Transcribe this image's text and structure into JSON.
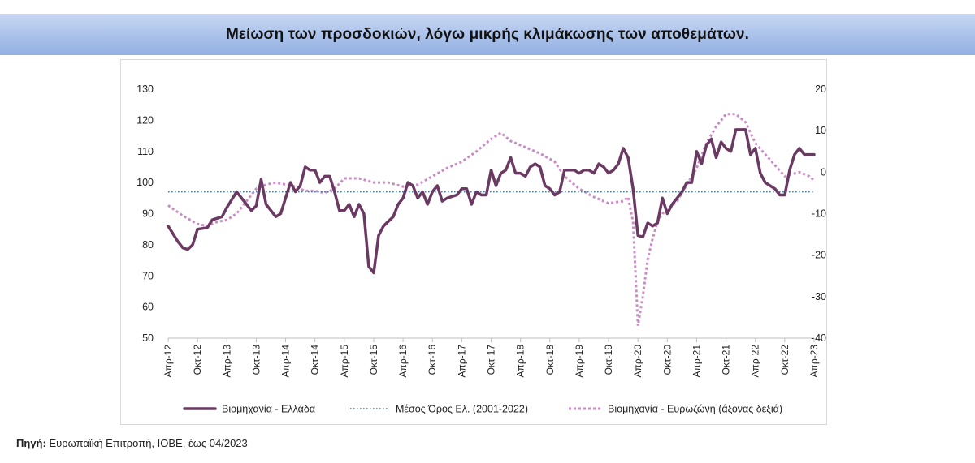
{
  "header": {
    "title": "Μείωση των προσδοκιών, λόγω μικρής κλιμάκωσης των αποθεμάτων."
  },
  "source": {
    "label": "Πηγή:",
    "text": " Ευρωπαϊκή Επιτροπή, ΙΟΒΕ, έως 04/2023"
  },
  "colors": {
    "greece": "#6b3a63",
    "average": "#2e7fb8",
    "eurozone": "#c98cc4",
    "axis": "#bfbfbf",
    "text": "#222222"
  },
  "chart_data": {
    "type": "line",
    "title": "",
    "grid": false,
    "legend_position": "bottom",
    "y_left": {
      "min": 50,
      "max": 130,
      "ticks": [
        50,
        60,
        70,
        80,
        90,
        100,
        110,
        120,
        130
      ]
    },
    "y_right": {
      "min": -40,
      "max": 20,
      "ticks": [
        -40,
        -30,
        -20,
        -10,
        0,
        10,
        20
      ]
    },
    "x_range": [
      "2012-04",
      "2023-04"
    ],
    "x_tick_labels": [
      "Απρ-12",
      "Οκτ-12",
      "Απρ-13",
      "Οκτ-13",
      "Απρ-14",
      "Οκτ-14",
      "Απρ-15",
      "Οκτ-15",
      "Απρ-16",
      "Οκτ-16",
      "Απρ-17",
      "Οκτ-17",
      "Απρ-18",
      "Οκτ-18",
      "Απρ-19",
      "Οκτ-19",
      "Απρ-20",
      "Οκτ-20",
      "Απρ-21",
      "Οκτ-21",
      "Απρ-22",
      "Οκτ-22",
      "Απρ-23"
    ],
    "series": [
      {
        "name": "Βιομηχανία  - Ελλάδα",
        "axis": "left",
        "style": "solid",
        "points": [
          [
            "2012-04",
            86
          ],
          [
            "2012-06",
            81
          ],
          [
            "2012-07",
            79
          ],
          [
            "2012-08",
            78.5
          ],
          [
            "2012-09",
            80
          ],
          [
            "2012-10",
            85
          ],
          [
            "2012-12",
            85.5
          ],
          [
            "2013-01",
            88
          ],
          [
            "2013-03",
            89
          ],
          [
            "2013-04",
            92
          ],
          [
            "2013-06",
            97
          ],
          [
            "2013-08",
            93
          ],
          [
            "2013-09",
            91
          ],
          [
            "2013-10",
            92.5
          ],
          [
            "2013-11",
            101
          ],
          [
            "2013-12",
            93
          ],
          [
            "2014-02",
            89
          ],
          [
            "2014-03",
            90
          ],
          [
            "2014-04",
            95
          ],
          [
            "2014-05",
            100
          ],
          [
            "2014-06",
            97
          ],
          [
            "2014-07",
            99
          ],
          [
            "2014-08",
            105
          ],
          [
            "2014-09",
            104
          ],
          [
            "2014-10",
            104
          ],
          [
            "2014-11",
            100
          ],
          [
            "2014-12",
            102
          ],
          [
            "2015-01",
            102
          ],
          [
            "2015-02",
            97
          ],
          [
            "2015-03",
            91
          ],
          [
            "2015-04",
            91
          ],
          [
            "2015-05",
            93
          ],
          [
            "2015-06",
            89
          ],
          [
            "2015-07",
            93
          ],
          [
            "2015-08",
            90
          ],
          [
            "2015-09",
            73
          ],
          [
            "2015-10",
            71
          ],
          [
            "2015-11",
            83
          ],
          [
            "2015-12",
            86
          ],
          [
            "2016-02",
            89
          ],
          [
            "2016-03",
            93
          ],
          [
            "2016-04",
            95
          ],
          [
            "2016-05",
            100
          ],
          [
            "2016-06",
            99
          ],
          [
            "2016-07",
            95
          ],
          [
            "2016-08",
            97
          ],
          [
            "2016-09",
            93
          ],
          [
            "2016-10",
            97
          ],
          [
            "2016-11",
            99
          ],
          [
            "2016-12",
            94
          ],
          [
            "2017-01",
            95
          ],
          [
            "2017-03",
            96
          ],
          [
            "2017-04",
            98
          ],
          [
            "2017-05",
            98
          ],
          [
            "2017-06",
            93
          ],
          [
            "2017-07",
            97
          ],
          [
            "2017-08",
            96
          ],
          [
            "2017-09",
            96
          ],
          [
            "2017-10",
            104
          ],
          [
            "2017-11",
            99
          ],
          [
            "2017-12",
            103
          ],
          [
            "2018-01",
            104
          ],
          [
            "2018-02",
            108
          ],
          [
            "2018-03",
            103
          ],
          [
            "2018-04",
            103
          ],
          [
            "2018-05",
            102
          ],
          [
            "2018-06",
            105
          ],
          [
            "2018-07",
            106
          ],
          [
            "2018-08",
            105
          ],
          [
            "2018-09",
            99
          ],
          [
            "2018-10",
            98
          ],
          [
            "2018-11",
            96
          ],
          [
            "2018-12",
            97
          ],
          [
            "2019-01",
            104
          ],
          [
            "2019-03",
            104
          ],
          [
            "2019-04",
            103
          ],
          [
            "2019-05",
            104
          ],
          [
            "2019-06",
            104
          ],
          [
            "2019-07",
            103
          ],
          [
            "2019-08",
            106
          ],
          [
            "2019-09",
            105
          ],
          [
            "2019-10",
            103
          ],
          [
            "2019-11",
            104
          ],
          [
            "2019-12",
            106
          ],
          [
            "2020-01",
            111
          ],
          [
            "2020-02",
            108
          ],
          [
            "2020-03",
            98
          ],
          [
            "2020-04",
            83
          ],
          [
            "2020-05",
            82.5
          ],
          [
            "2020-06",
            87
          ],
          [
            "2020-07",
            86
          ],
          [
            "2020-08",
            87
          ],
          [
            "2020-09",
            95
          ],
          [
            "2020-10",
            90
          ],
          [
            "2020-11",
            93
          ],
          [
            "2020-12",
            95
          ],
          [
            "2021-01",
            97
          ],
          [
            "2021-02",
            100
          ],
          [
            "2021-03",
            100
          ],
          [
            "2021-04",
            110
          ],
          [
            "2021-05",
            106
          ],
          [
            "2021-06",
            112
          ],
          [
            "2021-07",
            114
          ],
          [
            "2021-08",
            108
          ],
          [
            "2021-09",
            113
          ],
          [
            "2021-10",
            111
          ],
          [
            "2021-11",
            110
          ],
          [
            "2021-12",
            117
          ],
          [
            "2022-01",
            117
          ],
          [
            "2022-02",
            117
          ],
          [
            "2022-03",
            109
          ],
          [
            "2022-04",
            111
          ],
          [
            "2022-05",
            103
          ],
          [
            "2022-06",
            100
          ],
          [
            "2022-07",
            99
          ],
          [
            "2022-08",
            98
          ],
          [
            "2022-09",
            96
          ],
          [
            "2022-10",
            96
          ],
          [
            "2022-11",
            104
          ],
          [
            "2022-12",
            109
          ],
          [
            "2023-01",
            111
          ],
          [
            "2023-02",
            109
          ],
          [
            "2023-04",
            109
          ]
        ]
      },
      {
        "name": "Μέσος Όρος Ελ. (2001-2022)",
        "axis": "left",
        "style": "dotted",
        "points": [
          [
            "2012-04",
            97
          ],
          [
            "2023-04",
            97
          ]
        ]
      },
      {
        "name": "Βιομηχανία - Ευρωζώνη (άξονας δεξιά)",
        "axis": "right",
        "style": "dashed",
        "points": [
          [
            "2012-04",
            -8
          ],
          [
            "2012-07",
            -10.5
          ],
          [
            "2012-10",
            -12.5
          ],
          [
            "2012-12",
            -13
          ],
          [
            "2013-02",
            -12
          ],
          [
            "2013-04",
            -11.5
          ],
          [
            "2013-06",
            -10
          ],
          [
            "2013-08",
            -7
          ],
          [
            "2013-10",
            -4
          ],
          [
            "2013-12",
            -3
          ],
          [
            "2014-02",
            -2.5
          ],
          [
            "2014-04",
            -3
          ],
          [
            "2014-06",
            -3.5
          ],
          [
            "2014-08",
            -4.5
          ],
          [
            "2014-10",
            -4.5
          ],
          [
            "2014-12",
            -5
          ],
          [
            "2015-02",
            -4
          ],
          [
            "2015-04",
            -1.5
          ],
          [
            "2015-07",
            -1.5
          ],
          [
            "2015-10",
            -2.5
          ],
          [
            "2016-01",
            -2.5
          ],
          [
            "2016-04",
            -3.5
          ],
          [
            "2016-07",
            -3
          ],
          [
            "2016-10",
            -1
          ],
          [
            "2017-01",
            1
          ],
          [
            "2017-04",
            2.5
          ],
          [
            "2017-07",
            5
          ],
          [
            "2017-10",
            8
          ],
          [
            "2017-12",
            9.5
          ],
          [
            "2018-02",
            7.5
          ],
          [
            "2018-05",
            6
          ],
          [
            "2018-08",
            4.5
          ],
          [
            "2018-11",
            2.5
          ],
          [
            "2019-01",
            -1
          ],
          [
            "2019-04",
            -4
          ],
          [
            "2019-07",
            -6
          ],
          [
            "2019-10",
            -7.5
          ],
          [
            "2020-01",
            -7
          ],
          [
            "2020-02",
            -6
          ],
          [
            "2020-03",
            -12
          ],
          [
            "2020-04",
            -37
          ],
          [
            "2020-05",
            -30
          ],
          [
            "2020-06",
            -21
          ],
          [
            "2020-07",
            -16
          ],
          [
            "2020-08",
            -12
          ],
          [
            "2020-09",
            -10
          ],
          [
            "2020-10",
            -9
          ],
          [
            "2020-12",
            -7
          ],
          [
            "2021-02",
            -3
          ],
          [
            "2021-04",
            1
          ],
          [
            "2021-06",
            7
          ],
          [
            "2021-08",
            11
          ],
          [
            "2021-10",
            14
          ],
          [
            "2021-12",
            14
          ],
          [
            "2022-02",
            12
          ],
          [
            "2022-04",
            7
          ],
          [
            "2022-07",
            3
          ],
          [
            "2022-10",
            -1
          ],
          [
            "2023-01",
            0
          ],
          [
            "2023-03",
            -1
          ],
          [
            "2023-04",
            -2
          ]
        ]
      }
    ]
  }
}
